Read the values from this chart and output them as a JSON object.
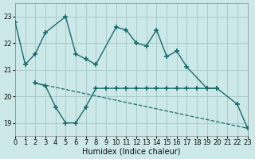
{
  "xlabel": "Humidex (Indice chaleur)",
  "bg_color": "#cce8e8",
  "grid_color": "#aacccc",
  "line_color": "#1a6b6b",
  "xlim": [
    0,
    23
  ],
  "ylim": [
    18.5,
    23.5
  ],
  "yticks": [
    19,
    20,
    21,
    22,
    23
  ],
  "xticks": [
    0,
    1,
    2,
    3,
    4,
    5,
    6,
    7,
    8,
    9,
    10,
    11,
    12,
    13,
    14,
    15,
    16,
    17,
    18,
    19,
    20,
    21,
    22,
    23
  ],
  "series1_x": [
    0,
    1,
    2,
    3,
    5,
    6,
    7,
    8,
    10,
    11,
    12,
    13,
    14,
    15,
    16,
    17,
    19,
    20,
    22,
    23
  ],
  "series1_y": [
    22.8,
    21.2,
    21.6,
    22.4,
    23.0,
    21.6,
    21.4,
    21.2,
    22.6,
    22.5,
    22.0,
    21.9,
    22.5,
    21.5,
    21.7,
    21.1,
    20.3,
    20.3,
    19.7,
    18.8
  ],
  "series2_x": [
    2,
    3,
    4,
    5,
    6,
    7,
    8,
    9,
    10,
    11,
    12,
    13,
    14,
    15,
    16,
    17,
    18,
    19,
    20
  ],
  "series2_y": [
    20.5,
    20.4,
    19.6,
    19.0,
    19.0,
    19.6,
    20.3,
    20.3,
    20.3,
    20.3,
    20.3,
    20.3,
    20.3,
    20.3,
    20.3,
    20.3,
    20.3,
    20.3,
    20.3
  ],
  "series3_x": [
    2,
    23
  ],
  "series3_y": [
    20.5,
    18.8
  ],
  "label_fontsize": 7,
  "tick_fontsize": 6
}
